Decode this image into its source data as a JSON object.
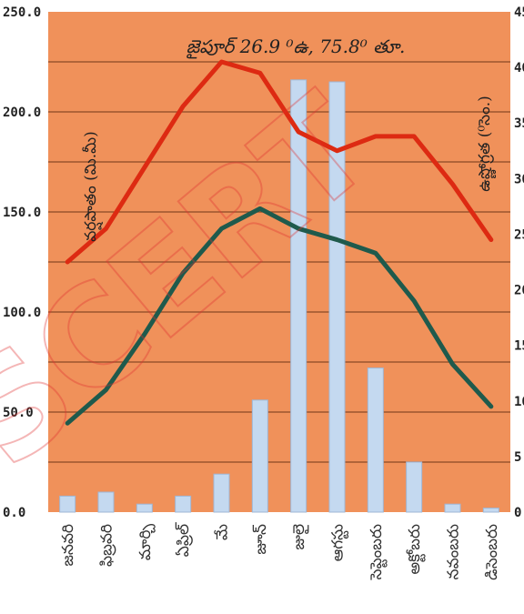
{
  "chart_data": {
    "type": "bar+line",
    "title": "జైపూర్ 26.9 ⁰ఉ, 75.8⁰ తూ.",
    "ylabel": "వర్షపాతం (మి.మీ)",
    "ylabel_right": "ఉష్ణోగ్రత (⁰సెం.)",
    "ylim": [
      0,
      250
    ],
    "ylim_right": [
      0,
      45
    ],
    "yticks": [
      "0.0",
      "50.0",
      "100.0",
      "150.0",
      "200.0",
      "250.0"
    ],
    "yticks_right": [
      "0",
      "5",
      "10",
      "15",
      "20",
      "25",
      "30",
      "35",
      "40",
      "45"
    ],
    "categories": [
      "జనవరి",
      "ఫిబ్రవరి",
      "మార్చి",
      "ఏప్రిల్",
      "మే",
      "జూన్",
      "జులై",
      "ఆగస్టు",
      "సెప్టెంబరు",
      "అక్టోబరు",
      "నవంబరు",
      "డిసెంబరు"
    ],
    "rainfall": [
      8,
      10,
      4,
      8,
      19,
      56,
      216,
      215,
      72,
      25,
      4,
      2
    ],
    "temp_max": [
      22.5,
      25.5,
      31,
      36.5,
      40.5,
      39.5,
      34.2,
      32.5,
      33.8,
      33.8,
      29.5,
      24.5
    ],
    "temp_min": [
      8,
      11,
      16,
      21.5,
      25.5,
      27.3,
      25.5,
      24.5,
      23.3,
      19,
      13.3,
      9.5
    ],
    "colors": {
      "background": "#f0915a",
      "bars": "#c4d9f0",
      "max_line": "#dd2a12",
      "min_line": "#1f5a4c",
      "grid": "#8a4a26"
    },
    "watermark": "SCERT"
  }
}
